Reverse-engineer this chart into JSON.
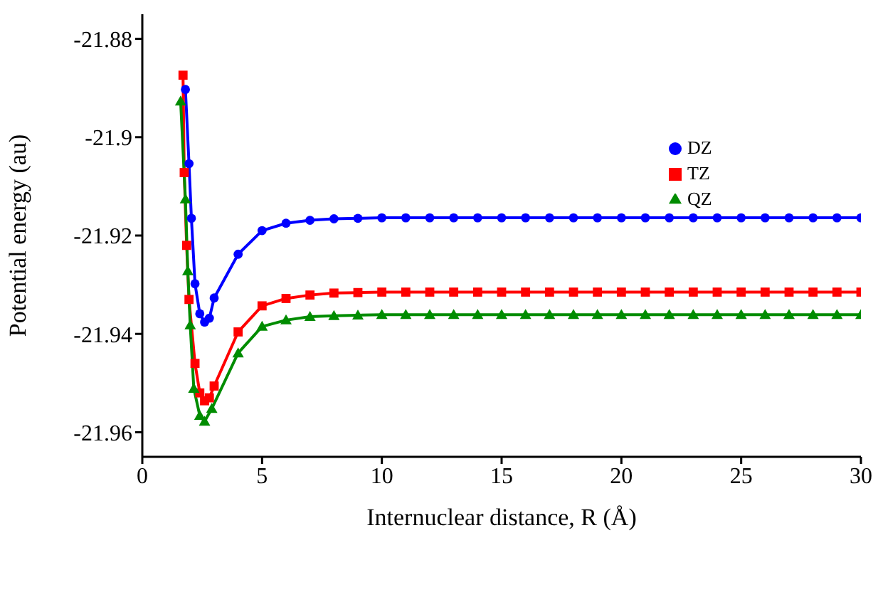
{
  "chart_data": {
    "type": "line",
    "xlabel": "Internuclear distance, R (Å)",
    "ylabel": "Potential energy (au)",
    "xlim": [
      0,
      30
    ],
    "xticks": [
      0,
      5,
      10,
      15,
      20,
      25,
      30
    ],
    "ylim": [
      -21.965,
      -21.875
    ],
    "yticks": [
      -21.96,
      -21.94,
      -21.92,
      -21.9,
      -21.88
    ],
    "grid": false,
    "legend": "top right",
    "line_style": "solid",
    "series": [
      {
        "name": "DZ",
        "color": "#0000ff",
        "marker": "circle",
        "x": [
          1.8,
          1.95,
          2.05,
          2.2,
          2.4,
          2.6,
          2.8,
          3,
          4,
          5,
          6,
          7,
          8,
          9,
          10,
          11,
          12,
          13,
          14,
          15,
          16,
          17,
          18,
          19,
          20,
          21,
          22,
          23,
          24,
          25,
          26,
          27,
          28,
          29,
          30
        ],
        "values": [
          -21.8903,
          -21.9054,
          -21.9165,
          -21.9298,
          -21.9359,
          -21.9376,
          -21.9368,
          -21.9327,
          -21.9238,
          -21.919,
          -21.9175,
          -21.9169,
          -21.9166,
          -21.9165,
          -21.9164,
          -21.9164,
          -21.9164,
          -21.9164,
          -21.9164,
          -21.9164,
          -21.9164,
          -21.9164,
          -21.9164,
          -21.9164,
          -21.9164,
          -21.9164,
          -21.9164,
          -21.9164,
          -21.9164,
          -21.9164,
          -21.9164,
          -21.9164,
          -21.9164,
          -21.9164,
          -21.9164
        ]
      },
      {
        "name": "TZ",
        "color": "#ff0000",
        "marker": "square",
        "x": [
          1.7,
          1.75,
          1.85,
          1.95,
          2.2,
          2.4,
          2.6,
          2.8,
          3,
          4,
          5,
          6,
          7,
          8,
          9,
          10,
          11,
          12,
          13,
          14,
          15,
          16,
          17,
          18,
          19,
          20,
          21,
          22,
          23,
          24,
          25,
          26,
          27,
          28,
          29,
          30
        ],
        "values": [
          -21.8874,
          -21.9072,
          -21.922,
          -21.933,
          -21.946,
          -21.952,
          -21.9536,
          -21.953,
          -21.9506,
          -21.9396,
          -21.9343,
          -21.9328,
          -21.9321,
          -21.9317,
          -21.9316,
          -21.9315,
          -21.9315,
          -21.9315,
          -21.9315,
          -21.9315,
          -21.9315,
          -21.9315,
          -21.9315,
          -21.9315,
          -21.9315,
          -21.9315,
          -21.9315,
          -21.9315,
          -21.9315,
          -21.9315,
          -21.9315,
          -21.9315,
          -21.9315,
          -21.9315,
          -21.9315,
          -21.9315
        ]
      },
      {
        "name": "QZ",
        "color": "#008c00",
        "marker": "triangle",
        "x": [
          1.6,
          1.8,
          1.9,
          2,
          2.15,
          2.4,
          2.6,
          2.9,
          4,
          5,
          6,
          7,
          8,
          9,
          10,
          11,
          12,
          13,
          14,
          15,
          16,
          17,
          18,
          19,
          20,
          21,
          22,
          23,
          24,
          25,
          26,
          27,
          28,
          29,
          30
        ],
        "values": [
          -21.8927,
          -21.9126,
          -21.9272,
          -21.9382,
          -21.9511,
          -21.9566,
          -21.9578,
          -21.9552,
          -21.9439,
          -21.9385,
          -21.9372,
          -21.9365,
          -21.9363,
          -21.9362,
          -21.9361,
          -21.9361,
          -21.9361,
          -21.9361,
          -21.9361,
          -21.9361,
          -21.9361,
          -21.9361,
          -21.9361,
          -21.9361,
          -21.9361,
          -21.9361,
          -21.9361,
          -21.9361,
          -21.9361,
          -21.9361,
          -21.9361,
          -21.9361,
          -21.9361,
          -21.9361,
          -21.9361
        ]
      }
    ]
  }
}
